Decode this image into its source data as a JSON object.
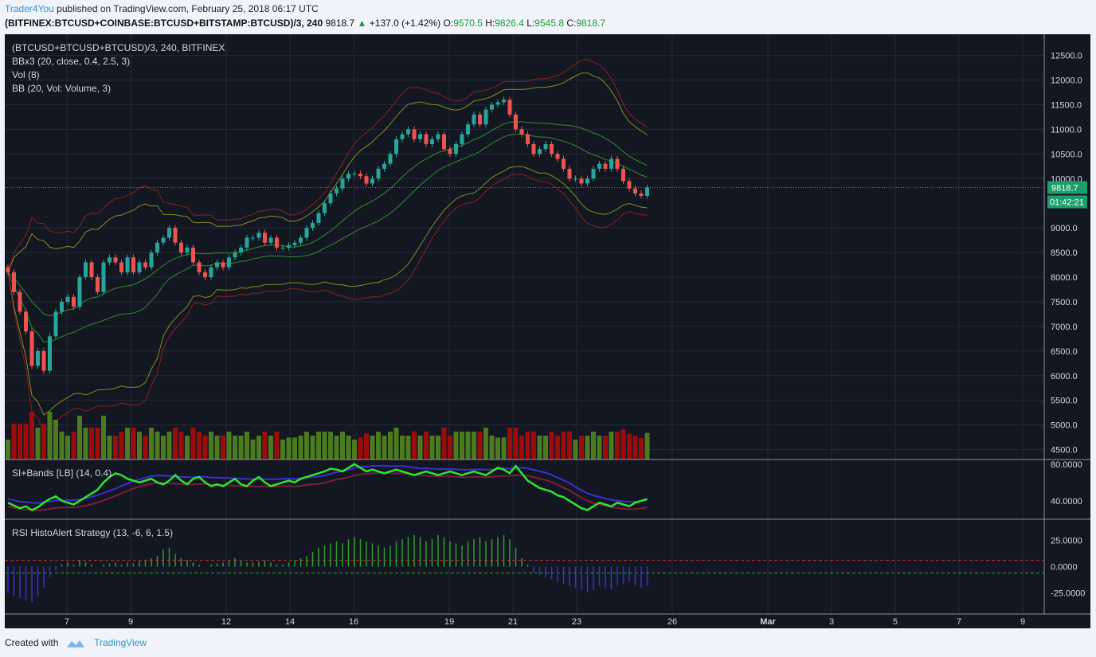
{
  "header": {
    "author": "Trader4You",
    "published": "published on TradingView.com, February 25, 2018 06:17 UTC",
    "symbol": "(BITFINEX:BTCUSD+COINBASE:BTCUSD+BITSTAMP:BTCUSD)/3, 240",
    "last": "9818.7",
    "change": "+137.0 (+1.42%)",
    "o_label": "O:",
    "o_value": "9570.5",
    "h_label": "H:",
    "h_value": "9826.4",
    "l_label": "L:",
    "l_value": "9545.8",
    "c_label": "C:",
    "c_value": "9818.7"
  },
  "legends": {
    "main": "(BTCUSD+BTCUSD+BTCUSD)/3, 240, BITFINEX",
    "bb": "BBx3 (20, close, 0.4, 2.5, 3)",
    "vol": "Vol (8)",
    "volbb": "BB (20, Vol: Volume, 3)",
    "si": "SI+Bands [LB] (14, 0.4)",
    "rsi": "RSI HistoAlert Strategy (13, -6, 6, 1.5)"
  },
  "price_labels": {
    "last": "9818.7",
    "countdown": "01:42:21"
  },
  "footer": {
    "created": "Created with",
    "brand": "TradingView"
  },
  "colors": {
    "background": "#131722",
    "up": "#26a69a",
    "down": "#ef5350",
    "vol_up": "#4c7a1e",
    "vol_down": "#9c0c0c",
    "si_line": "#2ee52e",
    "si_band": "#3a2fd0",
    "rsi_pos": "#2e9b2e",
    "rsi_neg": "#3a2fd0",
    "last_price": "#1e9e6a"
  },
  "chart_data": [
    {
      "type": "candlestick",
      "title": "(BTCUSD+BTCUSD+BTCUSD)/3, 240, BITFINEX",
      "ylim": [
        4300,
        12800
      ],
      "y_ticks": [
        "12500.0",
        "12000.0",
        "11500.0",
        "11000.0",
        "10500.0",
        "10000.0",
        "9000.0",
        "8500.0",
        "8000.0",
        "7500.0",
        "7000.0",
        "6500.0",
        "6000.0",
        "5500.0",
        "5000.0",
        "4500.0"
      ],
      "x_ticks": [
        "7",
        "9",
        "12",
        "14",
        "16",
        "19",
        "21",
        "23",
        "26",
        "Mar",
        "3",
        "5",
        "7",
        "9"
      ],
      "closes": [
        8100,
        7700,
        7300,
        6900,
        6200,
        6500,
        6100,
        6800,
        7300,
        7500,
        7600,
        7400,
        8000,
        8300,
        8000,
        7700,
        8300,
        8400,
        8300,
        8100,
        8400,
        8100,
        8300,
        8200,
        8500,
        8700,
        8800,
        9000,
        8700,
        8500,
        8600,
        8300,
        8100,
        8000,
        8200,
        8300,
        8200,
        8400,
        8500,
        8600,
        8800,
        8800,
        8900,
        8700,
        8800,
        8600,
        8600,
        8650,
        8700,
        8800,
        9000,
        9100,
        9300,
        9500,
        9700,
        9800,
        10000,
        10100,
        10100,
        10050,
        9900,
        10000,
        10200,
        10300,
        10500,
        10800,
        10900,
        11000,
        10800,
        10900,
        10700,
        10800,
        10900,
        10600,
        10500,
        10700,
        10900,
        11100,
        11300,
        11100,
        11400,
        11500,
        11550,
        11600,
        11300,
        11000,
        10900,
        10700,
        10500,
        10600,
        10700,
        10500,
        10400,
        10200,
        10000,
        10000,
        9900,
        10000,
        10200,
        10300,
        10200,
        10400,
        10200,
        9950,
        9800,
        9700,
        9650,
        9818.7
      ],
      "last_price": 9818.7
    },
    {
      "type": "bar",
      "title": "Vol (8)",
      "note": "volume histogram with Bollinger bands (BB (20, Vol: Volume, 3))"
    },
    {
      "type": "line",
      "title": "SI+Bands [LB] (14, 0.4)",
      "y_ticks": [
        "80.0000",
        "40.0000"
      ],
      "ylim": [
        20,
        85
      ],
      "values": [
        38,
        35,
        32,
        34,
        30,
        33,
        38,
        42,
        45,
        40,
        38,
        36,
        40,
        44,
        48,
        52,
        60,
        66,
        70,
        68,
        64,
        62,
        60,
        62,
        64,
        60,
        58,
        62,
        68,
        62,
        58,
        64,
        66,
        60,
        56,
        58,
        56,
        60,
        64,
        58,
        56,
        62,
        66,
        60,
        56,
        58,
        60,
        62,
        60,
        64,
        66,
        68,
        70,
        72,
        75,
        74,
        72,
        76,
        80,
        76,
        72,
        74,
        72,
        70,
        72,
        74,
        72,
        70,
        68,
        70,
        72,
        70,
        68,
        70,
        72,
        70,
        68,
        70,
        72,
        70,
        68,
        72,
        76,
        74,
        70,
        78,
        70,
        62,
        58,
        54,
        52,
        50,
        46,
        44,
        40,
        36,
        32,
        30,
        34,
        38,
        36,
        34,
        38,
        36,
        34,
        38,
        40,
        42
      ]
    },
    {
      "type": "bar",
      "title": "RSI HistoAlert Strategy (13, -6, 6, 1.5)",
      "y_ticks": [
        "25.0000",
        "0.0000",
        "-25.0000"
      ],
      "ylim": [
        -45,
        45
      ],
      "thresholds": [
        6,
        -6
      ],
      "values": [
        -25,
        -28,
        -30,
        -32,
        -34,
        -28,
        -20,
        -10,
        -4,
        2,
        4,
        2,
        6,
        4,
        2,
        0,
        2,
        3,
        4,
        2,
        4,
        3,
        5,
        6,
        8,
        10,
        16,
        18,
        12,
        8,
        6,
        4,
        2,
        0,
        2,
        3,
        4,
        6,
        8,
        6,
        4,
        4,
        5,
        6,
        4,
        2,
        2,
        4,
        6,
        8,
        10,
        14,
        18,
        20,
        22,
        24,
        22,
        26,
        28,
        26,
        24,
        22,
        20,
        18,
        20,
        24,
        26,
        28,
        30,
        28,
        24,
        26,
        30,
        28,
        24,
        22,
        20,
        24,
        26,
        28,
        24,
        26,
        28,
        30,
        26,
        18,
        8,
        2,
        -6,
        -8,
        -10,
        -12,
        -14,
        -16,
        -18,
        -20,
        -22,
        -24,
        -22,
        -18,
        -20,
        -22,
        -18,
        -16,
        -14,
        -18,
        -20,
        -18
      ]
    }
  ]
}
